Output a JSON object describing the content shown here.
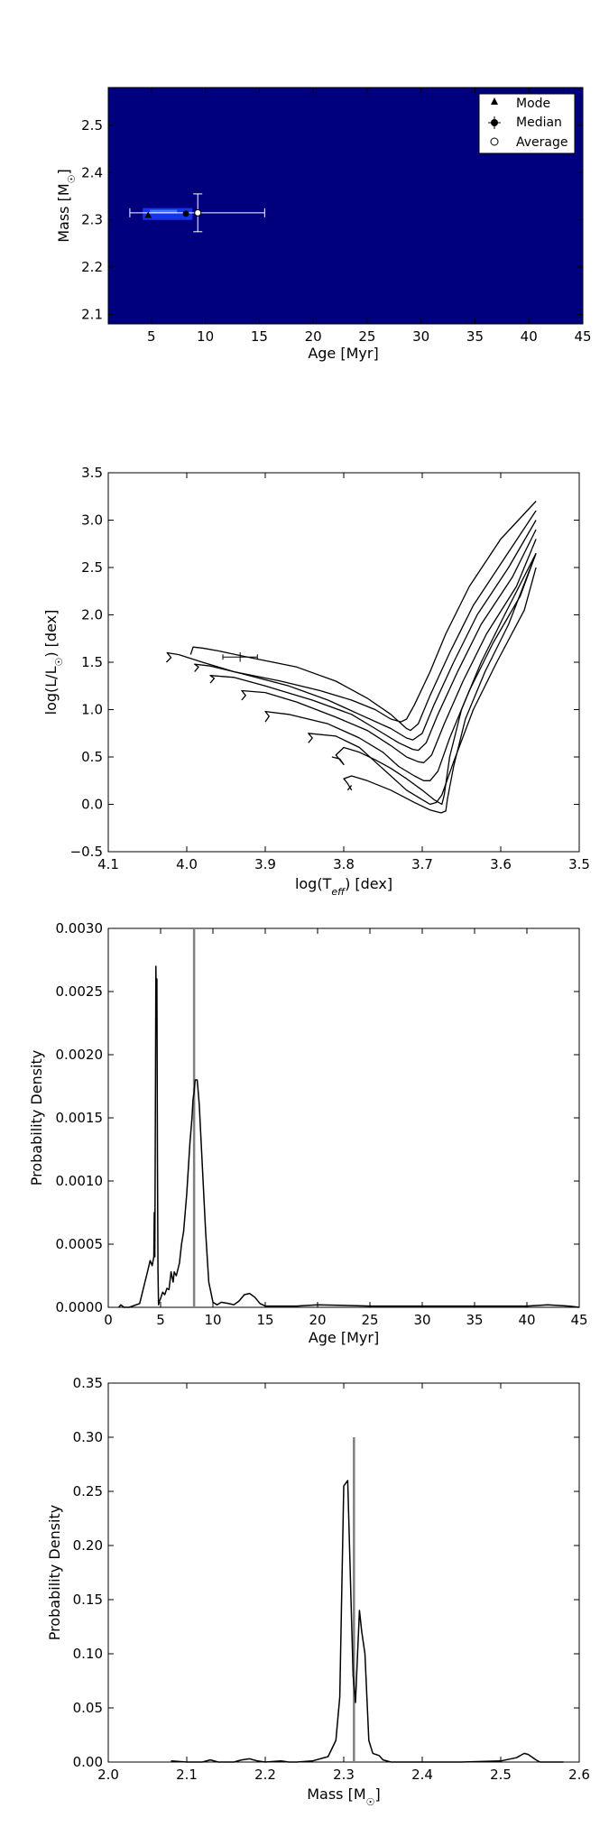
{
  "chart_data": [
    {
      "type": "heatmap",
      "xlabel": "Age [Myr]",
      "ylabel": "Mass [M",
      "ylabel_sub": "☉",
      "ylabel_close": "]",
      "xlim": [
        1,
        45
      ],
      "ylim": [
        2.08,
        2.58
      ],
      "xticks": [
        5,
        10,
        15,
        20,
        25,
        30,
        35,
        40,
        45
      ],
      "xtick_labels": [
        "5",
        "10",
        "15",
        "20",
        "25",
        "30",
        "35",
        "40",
        "45"
      ],
      "yticks": [
        2.1,
        2.2,
        2.3,
        2.4,
        2.5
      ],
      "ytick_labels": [
        "2.1",
        "2.2",
        "2.3",
        "2.4",
        "2.5"
      ],
      "background_color": "#00007f",
      "hot_region": {
        "age_range": [
          4.2,
          8.8
        ],
        "mass_range": [
          2.3,
          2.325
        ]
      },
      "legend": {
        "placement": "top-right",
        "entries": [
          "Mode",
          "Median",
          "Average"
        ]
      },
      "mode": {
        "age": 4.7,
        "mass": 2.31
      },
      "median": {
        "age": 8.2,
        "mass": 2.313
      },
      "average": {
        "age": 9.3,
        "mass": 2.315,
        "age_err": [
          3.0,
          15.5
        ],
        "mass_err": [
          2.275,
          2.355
        ]
      }
    },
    {
      "type": "line",
      "xlabel": "log(T",
      "xlabel_sub": "eff",
      "xlabel_close": ") [dex]",
      "ylabel": "log(L/L",
      "ylabel_sub": "☉",
      "ylabel_close": ") [dex]",
      "xlim": [
        4.1,
        3.5
      ],
      "ylim": [
        -0.5,
        3.5
      ],
      "xticks": [
        4.1,
        4.0,
        3.9,
        3.8,
        3.7,
        3.6,
        3.5
      ],
      "xtick_labels": [
        "4.1",
        "4.0",
        "3.9",
        "3.8",
        "3.7",
        "3.6",
        "3.5"
      ],
      "yticks": [
        -0.5,
        0.0,
        0.5,
        1.0,
        1.5,
        2.0,
        2.5,
        3.0,
        3.5
      ],
      "ytick_labels": [
        "−0.5",
        "0.0",
        "0.5",
        "1.0",
        "1.5",
        "2.0",
        "2.5",
        "3.0",
        "3.5"
      ],
      "series": [
        {
          "x": [
            4.026,
            4.02,
            4.025,
            4.01,
            3.98,
            3.94,
            3.88,
            3.83,
            3.79,
            3.76,
            3.74,
            3.727,
            3.72,
            3.71,
            3.69,
            3.67,
            3.64,
            3.6,
            3.555
          ],
          "y": [
            1.5,
            1.55,
            1.6,
            1.58,
            1.5,
            1.4,
            1.3,
            1.2,
            1.1,
            1.0,
            0.9,
            0.87,
            0.9,
            1.05,
            1.4,
            1.8,
            2.3,
            2.8,
            3.2
          ]
        },
        {
          "x": [
            3.995,
            3.992,
            3.98,
            3.96,
            3.92,
            3.86,
            3.81,
            3.77,
            3.74,
            3.72,
            3.715,
            3.705,
            3.69,
            3.665,
            3.635,
            3.595,
            3.555
          ],
          "y": [
            1.58,
            1.66,
            1.65,
            1.62,
            1.55,
            1.45,
            1.3,
            1.12,
            0.95,
            0.8,
            0.78,
            0.85,
            1.15,
            1.6,
            2.1,
            2.6,
            3.1
          ]
        },
        {
          "x": [
            3.99,
            3.985,
            3.99,
            3.97,
            3.93,
            3.87,
            3.82,
            3.78,
            3.74,
            3.72,
            3.712,
            3.7,
            3.685,
            3.66,
            3.63,
            3.59,
            3.555
          ],
          "y": [
            1.4,
            1.45,
            1.48,
            1.46,
            1.38,
            1.25,
            1.1,
            0.95,
            0.8,
            0.7,
            0.68,
            0.75,
            1.05,
            1.5,
            2.0,
            2.5,
            3.0
          ]
        },
        {
          "x": [
            3.97,
            3.965,
            3.97,
            3.94,
            3.9,
            3.84,
            3.79,
            3.76,
            3.73,
            3.712,
            3.705,
            3.695,
            3.68,
            3.655,
            3.625,
            3.585,
            3.555
          ],
          "y": [
            1.28,
            1.33,
            1.36,
            1.34,
            1.25,
            1.1,
            0.95,
            0.8,
            0.65,
            0.58,
            0.57,
            0.65,
            0.95,
            1.4,
            1.9,
            2.4,
            2.9
          ]
        },
        {
          "x": [
            3.93,
            3.925,
            3.93,
            3.9,
            3.86,
            3.81,
            3.77,
            3.74,
            3.72,
            3.705,
            3.698,
            3.688,
            3.672,
            3.648,
            3.618,
            3.58,
            3.555
          ],
          "y": [
            1.1,
            1.15,
            1.2,
            1.18,
            1.08,
            0.92,
            0.78,
            0.62,
            0.5,
            0.45,
            0.44,
            0.52,
            0.85,
            1.3,
            1.8,
            2.3,
            2.8
          ]
        },
        {
          "x": [
            3.9,
            3.895,
            3.9,
            3.87,
            3.82,
            3.78,
            3.75,
            3.73,
            3.71,
            3.698,
            3.69,
            3.68,
            3.665,
            3.64,
            3.61,
            3.575,
            3.555
          ],
          "y": [
            0.87,
            0.93,
            0.98,
            0.95,
            0.85,
            0.7,
            0.55,
            0.4,
            0.3,
            0.25,
            0.25,
            0.35,
            0.7,
            1.2,
            1.7,
            2.2,
            2.65
          ]
        },
        {
          "x": [
            3.845,
            3.84,
            3.845,
            3.81,
            3.78,
            3.76,
            3.74,
            3.72,
            3.7,
            3.69,
            3.682,
            3.675,
            3.66,
            3.635,
            3.605,
            3.57,
            3.555
          ],
          "y": [
            0.65,
            0.7,
            0.75,
            0.72,
            0.6,
            0.45,
            0.3,
            0.15,
            0.05,
            0.0,
            0.02,
            0.1,
            0.45,
            1.0,
            1.5,
            2.05,
            2.5
          ]
        },
        {
          "x": [
            3.815,
            3.805,
            3.8,
            3.81,
            3.8,
            3.78,
            3.76,
            3.74,
            3.72,
            3.7,
            3.685,
            3.675,
            3.672,
            3.665,
            3.65,
            3.625,
            3.595,
            3.555
          ],
          "y": [
            0.5,
            0.48,
            0.42,
            0.52,
            0.6,
            0.55,
            0.47,
            0.38,
            0.27,
            0.15,
            0.05,
            0.0,
            0.1,
            0.5,
            1.0,
            1.5,
            2.0,
            2.65
          ]
        },
        {
          "x": [
            3.79,
            3.795,
            3.8,
            3.79,
            3.77,
            3.74,
            3.71,
            3.69,
            3.676,
            3.67,
            3.668,
            3.66,
            3.645,
            3.62,
            3.59,
            3.555
          ],
          "y": [
            0.15,
            0.22,
            0.27,
            0.3,
            0.25,
            0.15,
            0.02,
            -0.06,
            -0.09,
            -0.07,
            0.05,
            0.4,
            0.9,
            1.4,
            1.9,
            2.65
          ]
        },
        {
          "x": [
            3.79,
            3.795
          ],
          "y": [
            0.2,
            0.15
          ]
        }
      ],
      "error_point": {
        "x": 3.932,
        "y": 1.555,
        "x_err": 0.022,
        "y_err": 0.05
      }
    },
    {
      "type": "line",
      "xlabel": "Age [Myr]",
      "ylabel": "Probability Density",
      "xlim": [
        0,
        45
      ],
      "ylim": [
        0,
        0.003
      ],
      "xticks": [
        0,
        5,
        10,
        15,
        20,
        25,
        30,
        35,
        40,
        45
      ],
      "xtick_labels": [
        "0",
        "5",
        "10",
        "15",
        "20",
        "25",
        "30",
        "35",
        "40",
        "45"
      ],
      "yticks": [
        0,
        0.0005,
        0.001,
        0.0015,
        0.002,
        0.0025,
        0.003
      ],
      "ytick_labels": [
        "0.0000",
        "0.0005",
        "0.0010",
        "0.0015",
        "0.0020",
        "0.0025",
        "0.0030"
      ],
      "x": [
        1.0,
        1.2,
        1.5,
        2,
        3,
        3.8,
        4.0,
        4.2,
        4.35,
        4.4,
        4.45,
        4.5,
        4.55,
        4.6,
        4.65,
        4.7,
        4.75,
        4.8,
        4.9,
        5.0,
        5.2,
        5.4,
        5.6,
        5.8,
        6.0,
        6.2,
        6.3,
        6.5,
        6.8,
        7.0,
        7.2,
        7.5,
        7.8,
        8.0,
        8.1,
        8.2,
        8.3,
        8.5,
        8.7,
        9.0,
        9.3,
        9.6,
        10.0,
        10.4,
        10.8,
        11.5,
        12,
        12.5,
        13,
        13.5,
        14,
        14.5,
        15,
        16,
        18,
        20,
        25,
        30,
        35,
        40,
        42,
        44,
        45
      ],
      "y": [
        0,
        2e-05,
        0,
        0,
        3e-05,
        0.0003,
        0.00037,
        0.00033,
        0.0004,
        0.00075,
        0.0004,
        0.0015,
        0.0027,
        0.0022,
        0.0026,
        0.0012,
        0.0003,
        2e-05,
        5e-05,
        7e-05,
        0.00012,
        0.0001,
        0.00015,
        0.00014,
        0.00028,
        0.0002,
        0.00028,
        0.00025,
        0.00035,
        0.0005,
        0.0006,
        0.0009,
        0.0013,
        0.0015,
        0.00165,
        0.0017,
        0.0018,
        0.0018,
        0.0016,
        0.0011,
        0.0006,
        0.0002,
        4e-05,
        2e-05,
        4e-05,
        3e-05,
        2e-05,
        5e-05,
        0.0001,
        0.00011,
        8e-05,
        3e-05,
        1e-05,
        1e-05,
        1e-05,
        2e-05,
        1e-05,
        1e-05,
        1e-05,
        1e-05,
        2e-05,
        1e-05,
        0
      ],
      "vline": 8.2
    },
    {
      "type": "line",
      "xlabel": "Mass [M",
      "xlabel_sub": "☉",
      "xlabel_close": "]",
      "ylabel": "Probability Density",
      "xlim": [
        2.0,
        2.6
      ],
      "ylim": [
        0,
        0.35
      ],
      "xticks": [
        2.0,
        2.1,
        2.2,
        2.3,
        2.4,
        2.5,
        2.6
      ],
      "xtick_labels": [
        "2.0",
        "2.1",
        "2.2",
        "2.3",
        "2.4",
        "2.5",
        "2.6"
      ],
      "yticks": [
        0,
        0.05,
        0.1,
        0.15,
        0.2,
        0.25,
        0.3,
        0.35
      ],
      "ytick_labels": [
        "0.00",
        "0.05",
        "0.10",
        "0.15",
        "0.20",
        "0.25",
        "0.30",
        "0.35"
      ],
      "x": [
        2.08,
        2.1,
        2.12,
        2.13,
        2.14,
        2.16,
        2.17,
        2.18,
        2.19,
        2.2,
        2.22,
        2.23,
        2.24,
        2.26,
        2.28,
        2.29,
        2.295,
        2.3,
        2.305,
        2.31,
        2.312,
        2.315,
        2.32,
        2.323,
        2.327,
        2.332,
        2.337,
        2.345,
        2.35,
        2.36,
        2.4,
        2.45,
        2.5,
        2.52,
        2.53,
        2.535,
        2.545,
        2.55,
        2.58
      ],
      "y": [
        0.001,
        0.0,
        0.0,
        0.002,
        0.0,
        0.0,
        0.002,
        0.003,
        0.001,
        0.0,
        0.001,
        0.0,
        0.0,
        0.001,
        0.005,
        0.02,
        0.06,
        0.255,
        0.26,
        0.13,
        0.08,
        0.055,
        0.14,
        0.12,
        0.1,
        0.02,
        0.008,
        0.006,
        0.002,
        0.0,
        0.0,
        0.0,
        0.001,
        0.004,
        0.008,
        0.007,
        0.002,
        0.0,
        0.0
      ],
      "vline": 2.313
    }
  ]
}
